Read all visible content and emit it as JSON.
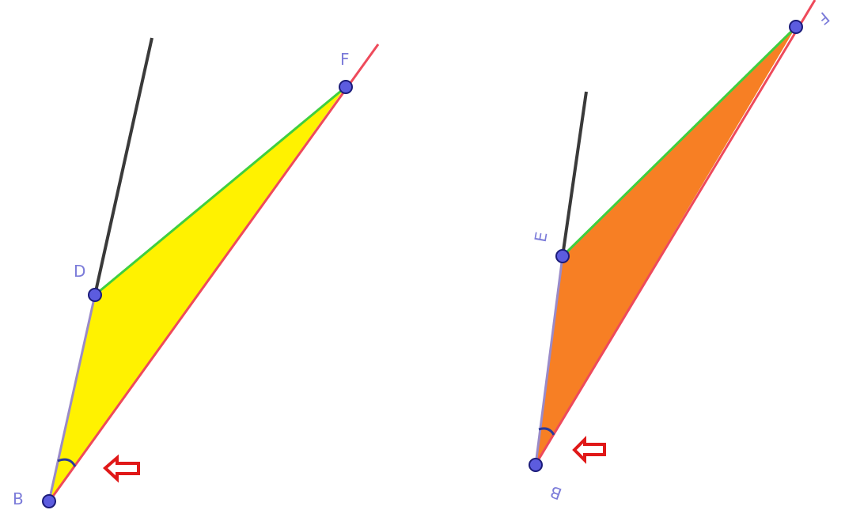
{
  "colors": {
    "background": "#ffffff",
    "point_fill": "#5c5cdf",
    "point_stroke": "#1c1c7a",
    "label": "#7b7bd9",
    "ray": "#3a3a3a",
    "line_red": "#ee4a5b",
    "line_green": "#3fcf3f",
    "line_purple": "#9a8ac8",
    "angle_mark": "#2a3a9a",
    "arrow": "#e01818",
    "fill_left": "#fff200",
    "fill_right": "#f77f24"
  },
  "panels": [
    {
      "name": "left",
      "fill_color_name": "yellow",
      "labels": {
        "B": "B",
        "D": "D",
        "F": "F"
      }
    },
    {
      "name": "right",
      "fill_color_name": "orange",
      "labels": {
        "B": "B",
        "E": "E",
        "F": "F"
      }
    }
  ]
}
